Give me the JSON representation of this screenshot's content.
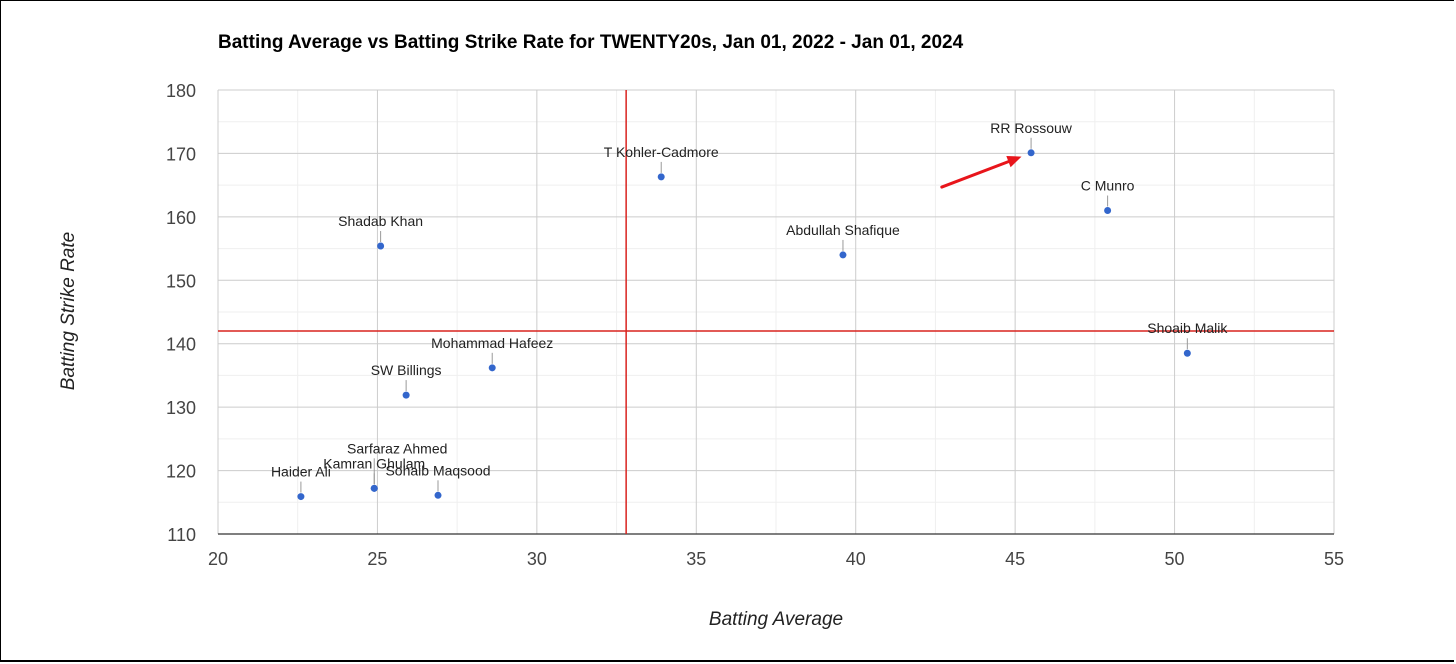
{
  "chart_data": {
    "type": "scatter",
    "title": "Batting Average vs Batting Strike Rate for TWENTY20s, Jan 01, 2022 - Jan 01, 2024",
    "xlabel": "Batting Average",
    "ylabel": "Batting Strike Rate",
    "xlim": [
      20,
      55
    ],
    "ylim": [
      110,
      180
    ],
    "x_ticks": [
      20,
      25,
      30,
      35,
      40,
      45,
      50,
      55
    ],
    "y_ticks": [
      110,
      120,
      130,
      140,
      150,
      160,
      170,
      180
    ],
    "grid": true,
    "point_color": "#3366cc",
    "reference_line_color": "#d9231f",
    "reference_lines": {
      "x": 32.8,
      "y": 142
    },
    "points": [
      {
        "name": "RR Rossouw",
        "x": 45.5,
        "y": 170.1
      },
      {
        "name": "T Kohler-Cadmore",
        "x": 33.9,
        "y": 166.3
      },
      {
        "name": "C Munro",
        "x": 47.9,
        "y": 161.0
      },
      {
        "name": "Shadab Khan",
        "x": 25.1,
        "y": 155.4
      },
      {
        "name": "Abdullah Shafique",
        "x": 39.6,
        "y": 154.0
      },
      {
        "name": "Shoaib Malik",
        "x": 50.4,
        "y": 138.5
      },
      {
        "name": "Mohammad Hafeez",
        "x": 28.6,
        "y": 136.2
      },
      {
        "name": "SW Billings",
        "x": 25.9,
        "y": 131.9
      },
      {
        "name": "Sarfaraz Ahmed",
        "x": 24.9,
        "y": 117.2
      },
      {
        "name": "Kamran Ghulam",
        "x": 24.9,
        "y": 117.2
      },
      {
        "name": "Haider Ali",
        "x": 22.6,
        "y": 115.9
      },
      {
        "name": "Sohaib Maqsood",
        "x": 26.9,
        "y": 116.1
      }
    ],
    "annotation": {
      "type": "arrow",
      "color": "#e8151b",
      "from": [
        42.7,
        164.7
      ],
      "to": [
        45.2,
        169.5
      ]
    }
  }
}
